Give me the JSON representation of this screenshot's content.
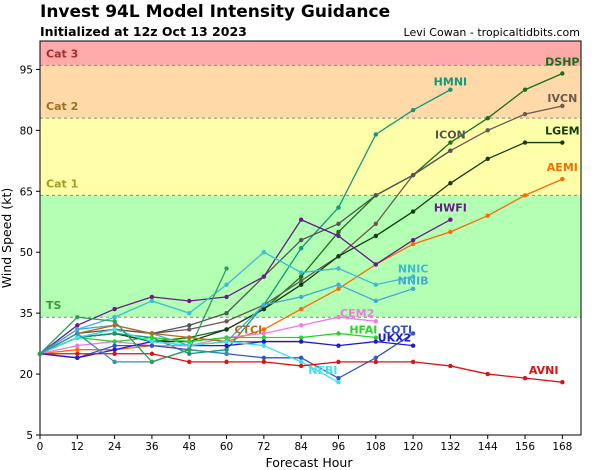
{
  "header": {
    "title": "Invest 94L Model Intensity Guidance",
    "subtitle": "Initialized at 12z Oct 13 2023",
    "credit": "Levi Cowan - tropicaltidbits.com"
  },
  "chart_data": {
    "type": "line",
    "xlabel": "Forecast Hour",
    "ylabel": "Wind Speed (kt)",
    "xlim": [
      0,
      174
    ],
    "ylim": [
      5,
      102
    ],
    "xticks": [
      0,
      12,
      24,
      36,
      48,
      60,
      72,
      84,
      96,
      108,
      120,
      132,
      144,
      156,
      168
    ],
    "yticks": [
      5,
      20,
      35,
      50,
      65,
      80,
      95
    ],
    "bands": [
      {
        "label": "TS",
        "from": 34,
        "to": 64,
        "color": "#b3ffb3",
        "text_color": "#3a9a3a"
      },
      {
        "label": "Cat 1",
        "from": 64,
        "to": 83,
        "color": "#ffffaa",
        "text_color": "#a0a020"
      },
      {
        "label": "Cat 2",
        "from": 83,
        "to": 96,
        "color": "#ffd9a8",
        "text_color": "#a07020"
      },
      {
        "label": "Cat 3",
        "from": 96,
        "to": 102,
        "color": "#ffaaaa",
        "text_color": "#a03030"
      }
    ],
    "series": [
      {
        "name": "DSHP",
        "color": "#1a6f1a",
        "label_at": [
          168,
          96
        ],
        "x": [
          0,
          12,
          24,
          36,
          48,
          60,
          72,
          84,
          96,
          108,
          120,
          132,
          144,
          156,
          168
        ],
        "y": [
          25,
          29,
          30,
          28,
          29,
          31,
          36,
          44,
          55,
          64,
          69,
          77,
          83,
          90,
          94
        ]
      },
      {
        "name": "IVCN",
        "color": "#6b5a52",
        "label_at": [
          168,
          87
        ],
        "x": [
          0,
          12,
          24,
          36,
          48,
          60,
          72,
          84,
          96,
          108,
          120,
          132,
          144,
          156,
          168
        ],
        "y": [
          25,
          29,
          31,
          30,
          31,
          33,
          37,
          43,
          49,
          57,
          69,
          75,
          80,
          84,
          86
        ]
      },
      {
        "name": "LGEM",
        "color": "#113d11",
        "label_at": [
          168,
          79
        ],
        "x": [
          0,
          12,
          24,
          36,
          48,
          60,
          72,
          84,
          96,
          108,
          120,
          132,
          144,
          156,
          168
        ],
        "y": [
          25,
          29,
          30,
          28,
          28,
          31,
          36,
          42,
          49,
          54,
          60,
          67,
          73,
          77,
          77
        ]
      },
      {
        "name": "AEMI",
        "color": "#ff6a00",
        "label_at": [
          168,
          70
        ],
        "x": [
          0,
          12,
          24,
          36,
          48,
          60,
          72,
          84,
          96,
          108,
          120,
          132,
          144,
          156,
          168
        ],
        "y": [
          25,
          26,
          26,
          27,
          27,
          28,
          31,
          36,
          41,
          47,
          52,
          55,
          59,
          64,
          68
        ]
      },
      {
        "name": "HMNI",
        "color": "#11997a",
        "label_at": [
          132,
          91
        ],
        "x": [
          0,
          12,
          24,
          36,
          48,
          60,
          72,
          84,
          96,
          108,
          120,
          132
        ],
        "y": [
          25,
          29,
          30,
          29,
          25,
          26,
          37,
          51,
          61,
          79,
          85,
          90
        ]
      },
      {
        "name": "ICON",
        "color": "#555555",
        "label_at": [
          132,
          78
        ],
        "x": [
          0,
          12,
          24,
          36,
          48,
          60,
          72,
          84,
          96,
          108,
          120,
          132
        ],
        "y": [
          25,
          30,
          31,
          30,
          32,
          35,
          44,
          53,
          57,
          64,
          69,
          75
        ]
      },
      {
        "name": "HWFI",
        "color": "#6a1a8a",
        "label_at": [
          132,
          60
        ],
        "x": [
          0,
          12,
          24,
          36,
          48,
          60,
          72,
          84,
          96,
          108,
          120,
          132
        ],
        "y": [
          25,
          32,
          36,
          39,
          38,
          39,
          44,
          58,
          54,
          47,
          53,
          58
        ]
      },
      {
        "name": "NNIC",
        "color": "#3bbcd6",
        "label_at": [
          120,
          45
        ],
        "x": [
          0,
          12,
          24,
          36,
          48,
          60,
          72,
          84,
          96,
          108,
          120
        ],
        "y": [
          25,
          31,
          34,
          38,
          35,
          42,
          50,
          45,
          46,
          42,
          44
        ]
      },
      {
        "name": "NNIB",
        "color": "#43a9d6",
        "label_at": [
          120,
          42
        ],
        "x": [
          0,
          12,
          24,
          36,
          48,
          60,
          72,
          84,
          96,
          108,
          120
        ],
        "y": [
          25,
          31,
          32,
          30,
          27,
          28,
          37,
          39,
          42,
          38,
          41
        ]
      },
      {
        "name": "CEM2",
        "color": "#f07ae0",
        "label_at": [
          102,
          34
        ],
        "x": [
          0,
          12,
          24,
          36,
          48,
          60,
          72,
          84,
          96,
          108
        ],
        "y": [
          25,
          27,
          28,
          27,
          27,
          29,
          30,
          32,
          34,
          33
        ]
      },
      {
        "name": "HFAI",
        "color": "#22d822",
        "label_at": [
          104,
          30
        ],
        "x": [
          0,
          12,
          24,
          36,
          48,
          60,
          72,
          84,
          96,
          108
        ],
        "y": [
          25,
          29,
          28,
          29,
          28,
          29,
          29,
          29,
          30,
          29
        ]
      },
      {
        "name": "CTCI",
        "color": "#b86a1c",
        "label_at": [
          67,
          30
        ],
        "x": [
          0,
          12,
          24,
          36,
          48,
          60,
          72,
          84
        ],
        "y": [
          25,
          30,
          32,
          30,
          29,
          28,
          28,
          28
        ]
      },
      {
        "name": "COTI",
        "color": "#3355cc",
        "label_at": [
          115,
          30
        ],
        "x": [
          0,
          12,
          24,
          36,
          48,
          60,
          72,
          84,
          96,
          108,
          120
        ],
        "y": [
          25,
          24,
          27,
          27,
          26,
          25,
          24,
          24,
          19,
          24,
          30
        ]
      },
      {
        "name": "UKX2",
        "color": "#1c1cd6",
        "label_at": [
          114,
          28
        ],
        "x": [
          0,
          12,
          24,
          36,
          48,
          60,
          72,
          84,
          96,
          108,
          120
        ],
        "y": [
          25,
          24,
          26,
          28,
          27,
          27,
          28,
          28,
          27,
          28,
          27
        ]
      },
      {
        "name": "NFBI",
        "color": "#3fe0f0",
        "label_at": [
          91,
          20
        ],
        "x": [
          0,
          12,
          24,
          36,
          48,
          60,
          72,
          84,
          96
        ],
        "y": [
          25,
          29,
          31,
          28,
          27,
          28,
          27,
          23,
          18
        ]
      },
      {
        "name": "AVNI",
        "color": "#e01010",
        "label_at": [
          162,
          20
        ],
        "x": [
          0,
          12,
          24,
          36,
          48,
          60,
          72,
          84,
          96,
          108,
          120,
          132,
          144,
          156,
          168
        ],
        "y": [
          25,
          25,
          25,
          25,
          23,
          23,
          23,
          22,
          23,
          23,
          23,
          22,
          20,
          19,
          18
        ]
      },
      {
        "name": "",
        "color": "#3a8fb0",
        "label_at": null,
        "x": [
          0,
          12,
          24,
          36,
          48,
          60
        ],
        "y": [
          25,
          30,
          23,
          23,
          26,
          25
        ]
      },
      {
        "name": "",
        "color": "#2aa05a",
        "label_at": null,
        "x": [
          0,
          12,
          24,
          36,
          48,
          60
        ],
        "y": [
          25,
          34,
          33,
          23,
          26,
          46
        ]
      }
    ]
  }
}
